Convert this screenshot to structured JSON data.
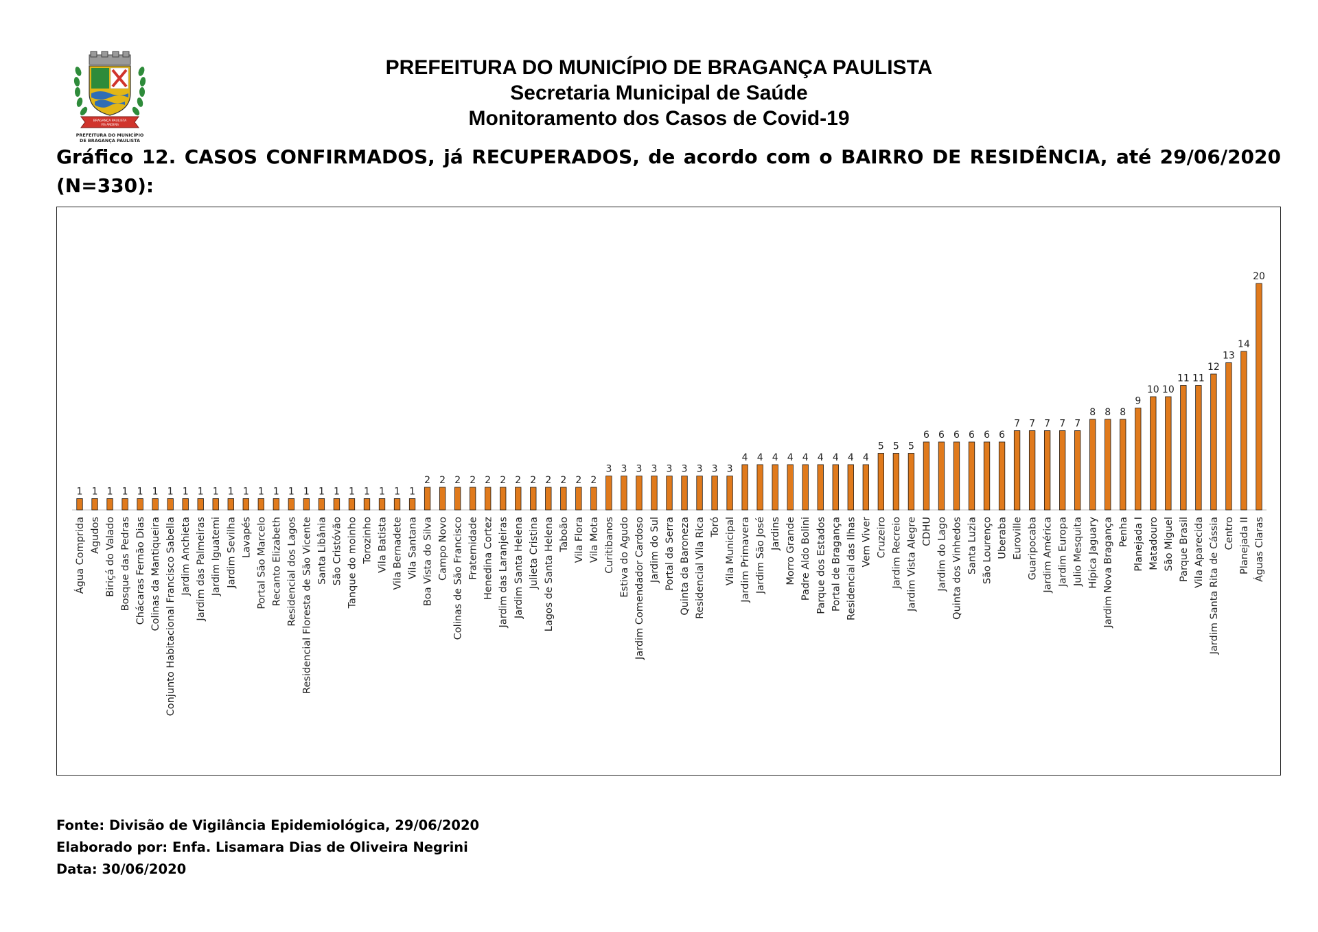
{
  "header": {
    "line1": "PREFEITURA DO MUNICÍPIO DE BRAGANÇA PAULISTA",
    "line2": "Secretaria Municipal de Saúde",
    "line3": "Monitoramento dos Casos de Covid-19"
  },
  "logo": {
    "caption_line1": "PREFEITURA DO MUNICÍPIO",
    "caption_line2": "DE BRAGANÇA PAULISTA",
    "ribbon_line1": "BRAGANÇA PAULISTA",
    "ribbon_line2": "VIS ANDENS",
    "colors": {
      "green": "#2e8b3a",
      "red": "#d0342c",
      "gold": "#e2b616",
      "blue": "#2f6db5"
    }
  },
  "chart_title": "Gráfico 12. CASOS CONFIRMADOS, já RECUPERADOS, de acordo com o BAIRRO DE RESIDÊNCIA, até 29/06/2020 (N=330):",
  "chart_data": {
    "type": "bar",
    "bar_color": "#e07a1c",
    "bar_edge_color": "#1a1a1a",
    "grid": false,
    "legend": "none",
    "ylim": [
      0,
      20
    ],
    "categories": [
      "Água Comprida",
      "Agudos",
      "Biriçá do Valado",
      "Bosque das Pedras",
      "Chácaras Fernão Dias",
      "Colinas da Mantiqueira",
      "Conjunto Habitacional Francisco Sabella",
      "Jardim Anchieta",
      "Jardim das Palmeiras",
      "Jardim Iguatemi",
      "Jardim Sevilha",
      "Lavapés",
      "Portal São Marcelo",
      "Recanto Elizabeth",
      "Residencial dos Lagos",
      "Residencial Floresta de São Vicente",
      "Santa Libânia",
      "São Cristóvão",
      "Tanque do moinho",
      "Torozinho",
      "Vila Batista",
      "Vila Bernadete",
      "Vila Santana",
      "Boa Vista do Silva",
      "Campo Novo",
      "Colinas de São Francisco",
      "Fraternidade",
      "Henedina Cortez",
      "Jardim das Laranjeiras",
      "Jardim Santa Helena",
      "Julieta Cristina",
      "Lagos de Santa Helena",
      "Taboão",
      "Vila Flora",
      "Vila Mota",
      "Curitibanos",
      "Estiva do Agudo",
      "Jardim Comendador Cardoso",
      "Jardim do Sul",
      "Portal da Serra",
      "Quinta da Baroneza",
      "Residencial Vila Rica",
      "Toró",
      "Vila Municipal",
      "Jardim Primavera",
      "Jardim São José",
      "Jardins",
      "Morro Grande",
      "Padre Aldo Bolini",
      "Parque dos Estados",
      "Portal de Bragança",
      "Residencial das Ilhas",
      "Vem Viver",
      "Cruzeiro",
      "Jardim Recreio",
      "Jardim Vista Alegre",
      "CDHU",
      "Jardim do Lago",
      "Quinta dos Vinhedos",
      "Santa Luzia",
      "São Lourenço",
      "Uberaba",
      "Euroville",
      "Guaripocaba",
      "Jardim América",
      "Jardim Europa",
      "Julio Mesquita",
      "Hípica Jaguary",
      "Jardim Nova Bragança",
      "Penha",
      "Planejada I",
      "Matadouro",
      "São Miguel",
      "Parque Brasil",
      "Vila Aparecida",
      "Jardim Santa Rita de Cássia",
      "Centro",
      "Planejada II",
      "Águas Claras"
    ],
    "values": [
      1,
      1,
      1,
      1,
      1,
      1,
      1,
      1,
      1,
      1,
      1,
      1,
      1,
      1,
      1,
      1,
      1,
      1,
      1,
      1,
      1,
      1,
      1,
      2,
      2,
      2,
      2,
      2,
      2,
      2,
      2,
      2,
      2,
      2,
      2,
      3,
      3,
      3,
      3,
      3,
      3,
      3,
      3,
      3,
      4,
      4,
      4,
      4,
      4,
      4,
      4,
      4,
      4,
      5,
      5,
      5,
      6,
      6,
      6,
      6,
      6,
      6,
      7,
      7,
      7,
      7,
      7,
      8,
      8,
      8,
      9,
      10,
      10,
      11,
      11,
      12,
      13,
      14,
      20
    ]
  },
  "footer": {
    "source": "Fonte: Divisão de Vigilância Epidemiológica, 29/06/2020",
    "author": "Elaborado por: Enfa. Lisamara Dias de Oliveira Negrini",
    "date": "Data: 30/06/2020"
  }
}
